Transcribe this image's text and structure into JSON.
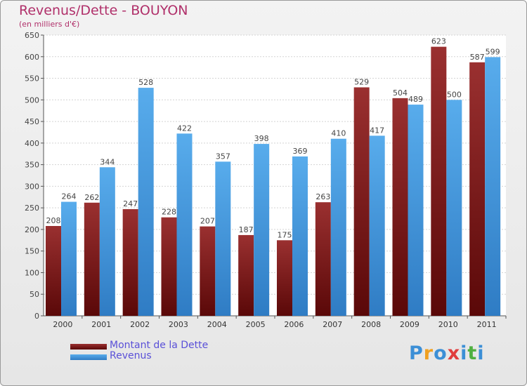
{
  "title": "Revenus/Dette - BOUYON",
  "subtitle": "(en milliers d'€)",
  "chart_data": {
    "type": "bar",
    "categories": [
      "2000",
      "2001",
      "2002",
      "2003",
      "2004",
      "2005",
      "2006",
      "2007",
      "2008",
      "2009",
      "2010",
      "2011"
    ],
    "series": [
      {
        "name": "Montant de la Dette",
        "color": "#7a1a1a",
        "values": [
          208,
          262,
          247,
          228,
          207,
          187,
          175,
          263,
          529,
          504,
          623,
          587
        ]
      },
      {
        "name": "Revenus",
        "color": "#4a9be0",
        "values": [
          264,
          344,
          528,
          422,
          357,
          398,
          369,
          410,
          417,
          489,
          500,
          599
        ]
      }
    ],
    "ylim": [
      0,
      650
    ],
    "yticks": [
      0,
      50,
      100,
      150,
      200,
      250,
      300,
      350,
      400,
      450,
      500,
      550,
      600,
      650
    ],
    "grid": true,
    "legend_position": "bottom-left"
  },
  "logo": {
    "letters": [
      "P",
      "r",
      "o",
      "x",
      "i",
      "t",
      "i"
    ],
    "colors": [
      "#3c8fd6",
      "#f0a020",
      "#3c8fd6",
      "#e03c3c",
      "#3c8fd6",
      "#50b040",
      "#3c8fd6"
    ]
  }
}
